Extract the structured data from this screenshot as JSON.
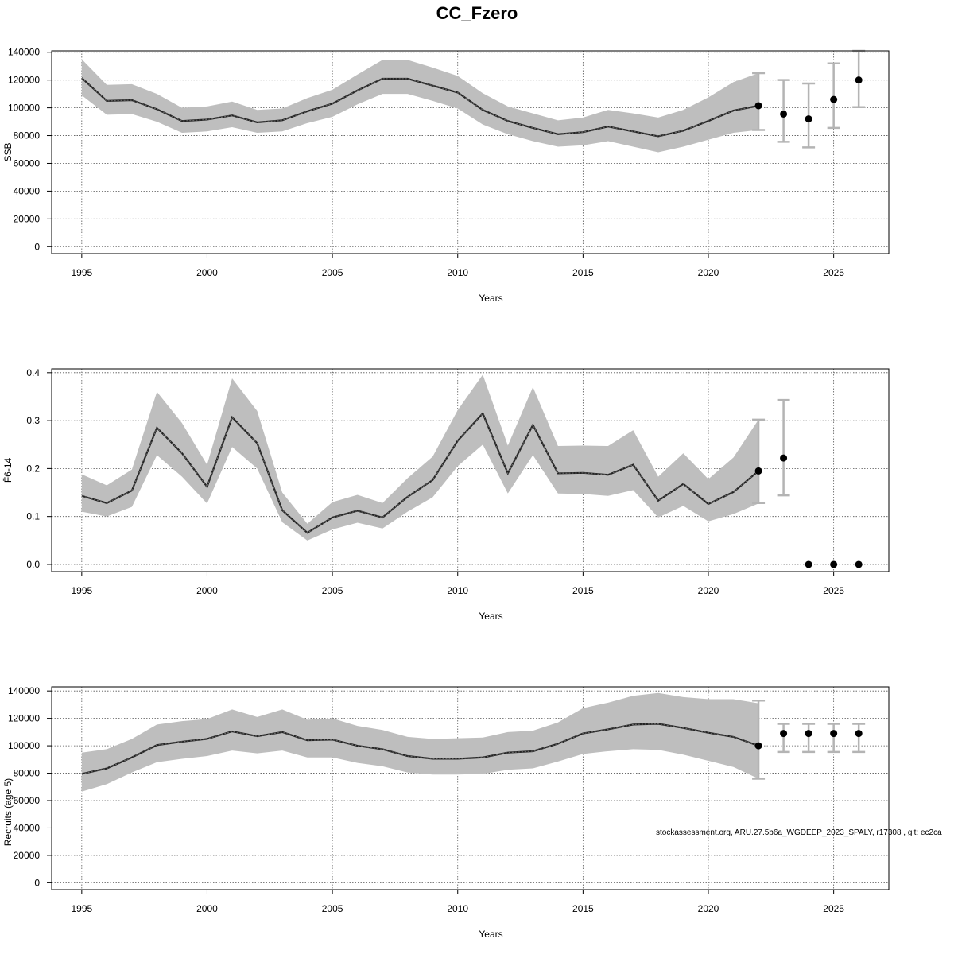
{
  "title": "CC_Fzero",
  "footnote": "stockassessment.org, ARU.27.5b6a_WGDEEP_2023_SPALY, r17308 , git: ec2ca",
  "colors": {
    "band": "#bebebe",
    "line": "#222222",
    "point": "#000000",
    "errorbar": "#b4b4b4",
    "grid": "#555555"
  },
  "chart_data": [
    {
      "type": "line",
      "ylabel": "SSB",
      "xlabel": "Years",
      "xlim": [
        1993.8,
        2027.2
      ],
      "ylim": [
        -5000,
        141000
      ],
      "grid": true,
      "x_ticks": [
        1995,
        2000,
        2005,
        2010,
        2015,
        2020,
        2025
      ],
      "y_ticks": [
        0,
        20000,
        40000,
        60000,
        80000,
        100000,
        120000,
        140000
      ],
      "x": [
        1995,
        1996,
        1997,
        1998,
        1999,
        2000,
        2001,
        2002,
        2003,
        2004,
        2005,
        2006,
        2007,
        2008,
        2009,
        2010,
        2011,
        2012,
        2013,
        2014,
        2015,
        2016,
        2017,
        2018,
        2019,
        2020,
        2021,
        2022
      ],
      "estimate": [
        121500,
        105000,
        105500,
        99000,
        90500,
        91500,
        94500,
        89500,
        91000,
        97500,
        103000,
        112500,
        121000,
        121000,
        116000,
        111000,
        98500,
        90500,
        85500,
        81000,
        82500,
        86500,
        83000,
        79500,
        83500,
        90500,
        98000,
        101500
      ],
      "lower": [
        109000,
        95000,
        95500,
        90000,
        82000,
        83000,
        86000,
        82000,
        83000,
        89000,
        93500,
        102500,
        110000,
        110000,
        105000,
        99500,
        88000,
        81000,
        76000,
        72000,
        73000,
        76000,
        72000,
        68000,
        72000,
        77000,
        82000,
        84000
      ],
      "upper": [
        135000,
        116500,
        117000,
        110000,
        100000,
        101000,
        104500,
        98500,
        99500,
        107000,
        113000,
        124000,
        134500,
        134500,
        129000,
        123000,
        110500,
        101000,
        96000,
        91000,
        93000,
        98500,
        96000,
        93000,
        98500,
        107500,
        118500,
        125000
      ],
      "forecast": {
        "x": [
          2022,
          2023,
          2024,
          2025,
          2026
        ],
        "values": [
          101500,
          95500,
          92000,
          106000,
          120000
        ],
        "lower": [
          84000,
          75500,
          71500,
          85500,
          100500
        ],
        "upper": [
          125000,
          120000,
          117500,
          132000,
          141000
        ]
      }
    },
    {
      "type": "line",
      "ylabel": "F̄6-14",
      "xlabel": "Years",
      "xlim": [
        1993.8,
        2027.2
      ],
      "ylim": [
        -0.015,
        0.408
      ],
      "grid": true,
      "x_ticks": [
        1995,
        2000,
        2005,
        2010,
        2015,
        2020,
        2025
      ],
      "y_ticks": [
        0.0,
        0.1,
        0.2,
        0.3,
        0.4
      ],
      "y_tick_labels": [
        "0.0",
        "0.1",
        "0.2",
        "0.3",
        "0.4"
      ],
      "x": [
        1995,
        1996,
        1997,
        1998,
        1999,
        2000,
        2001,
        2002,
        2003,
        2004,
        2005,
        2006,
        2007,
        2008,
        2009,
        2010,
        2011,
        2012,
        2013,
        2014,
        2015,
        2016,
        2017,
        2018,
        2019,
        2020,
        2021,
        2022
      ],
      "estimate": [
        0.143,
        0.128,
        0.154,
        0.285,
        0.232,
        0.162,
        0.307,
        0.253,
        0.113,
        0.066,
        0.098,
        0.112,
        0.098,
        0.141,
        0.176,
        0.258,
        0.315,
        0.19,
        0.291,
        0.19,
        0.191,
        0.187,
        0.208,
        0.133,
        0.168,
        0.126,
        0.151,
        0.195
      ],
      "lower": [
        0.11,
        0.1,
        0.12,
        0.228,
        0.183,
        0.127,
        0.245,
        0.2,
        0.088,
        0.05,
        0.073,
        0.087,
        0.075,
        0.11,
        0.14,
        0.205,
        0.25,
        0.148,
        0.228,
        0.148,
        0.147,
        0.143,
        0.155,
        0.098,
        0.122,
        0.09,
        0.105,
        0.127
      ],
      "upper": [
        0.188,
        0.165,
        0.198,
        0.36,
        0.295,
        0.208,
        0.388,
        0.32,
        0.15,
        0.085,
        0.13,
        0.145,
        0.128,
        0.18,
        0.225,
        0.322,
        0.396,
        0.248,
        0.37,
        0.247,
        0.248,
        0.247,
        0.28,
        0.183,
        0.232,
        0.178,
        0.223,
        0.302
      ],
      "forecast": {
        "x": [
          2022,
          2023,
          2024,
          2025,
          2026
        ],
        "values": [
          0.195,
          0.222,
          0.0,
          0.0,
          0.0
        ],
        "lower": [
          0.128,
          0.144,
          null,
          null,
          null
        ],
        "upper": [
          0.302,
          0.343,
          null,
          null,
          null
        ]
      }
    },
    {
      "type": "line",
      "ylabel": "Recruits (age 5)",
      "xlabel": "Years",
      "xlim": [
        1993.8,
        2027.2
      ],
      "ylim": [
        -5000,
        143000
      ],
      "grid": true,
      "x_ticks": [
        1995,
        2000,
        2005,
        2010,
        2015,
        2020,
        2025
      ],
      "y_ticks": [
        0,
        20000,
        40000,
        60000,
        80000,
        100000,
        120000,
        140000
      ],
      "x": [
        1995,
        1996,
        1997,
        1998,
        1999,
        2000,
        2001,
        2002,
        2003,
        2004,
        2005,
        2006,
        2007,
        2008,
        2009,
        2010,
        2011,
        2012,
        2013,
        2014,
        2015,
        2016,
        2017,
        2018,
        2019,
        2020,
        2021,
        2022
      ],
      "estimate": [
        79500,
        83500,
        91500,
        100500,
        103000,
        105000,
        110500,
        107000,
        110000,
        104000,
        104500,
        100000,
        97500,
        92500,
        90500,
        90500,
        91500,
        95000,
        96000,
        101500,
        109000,
        112000,
        115500,
        116000,
        113000,
        109500,
        106500,
        100000
      ],
      "lower": [
        66500,
        72000,
        80500,
        88000,
        90500,
        92500,
        96500,
        94500,
        96500,
        91500,
        91500,
        87500,
        85000,
        80500,
        79000,
        79000,
        79500,
        82500,
        83500,
        88500,
        94000,
        96000,
        97500,
        97000,
        93500,
        89000,
        84500,
        76000
      ],
      "upper": [
        95000,
        97500,
        105000,
        115500,
        118000,
        119500,
        126500,
        121000,
        126500,
        119000,
        120000,
        114500,
        111500,
        106500,
        105000,
        105500,
        106000,
        110000,
        111000,
        117000,
        127500,
        131500,
        136500,
        138500,
        135500,
        134000,
        134000,
        131000
      ],
      "forecast": {
        "x": [
          2022,
          2023,
          2024,
          2025,
          2026
        ],
        "values": [
          100000,
          109000,
          109000,
          109000,
          109000
        ],
        "lower": [
          76000,
          95500,
          95500,
          95500,
          95500
        ],
        "upper": [
          133000,
          116000,
          116000,
          116000,
          116000
        ]
      }
    }
  ]
}
